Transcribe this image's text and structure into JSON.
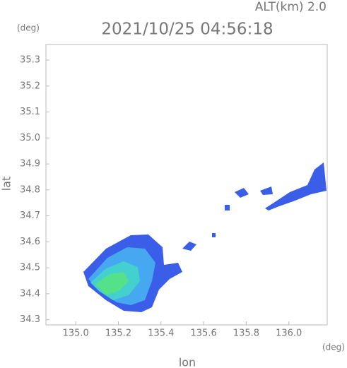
{
  "chart_data": {
    "type": "radar-map",
    "title": "2021/10/25 04:56:18",
    "subtitle": "ALT(km) 2.0",
    "x_label": "lon",
    "y_label": "lat",
    "x_unit": "(deg)",
    "y_unit": "(deg)",
    "xlim": [
      134.86,
      136.18
    ],
    "xticks": [
      {
        "value": 135.0,
        "label": "135.0"
      },
      135.2,
      135.4,
      135.6,
      135.8,
      {
        "value": 136.0,
        "label": "136.0"
      }
    ],
    "ylim": [
      34.28,
      35.36
    ],
    "yticks": [
      34.3,
      34.4,
      34.5,
      34.6,
      34.7,
      34.8,
      34.9,
      {
        "value": 35.0,
        "label": "35.0"
      },
      35.1,
      35.2,
      35.3
    ]
  }
}
